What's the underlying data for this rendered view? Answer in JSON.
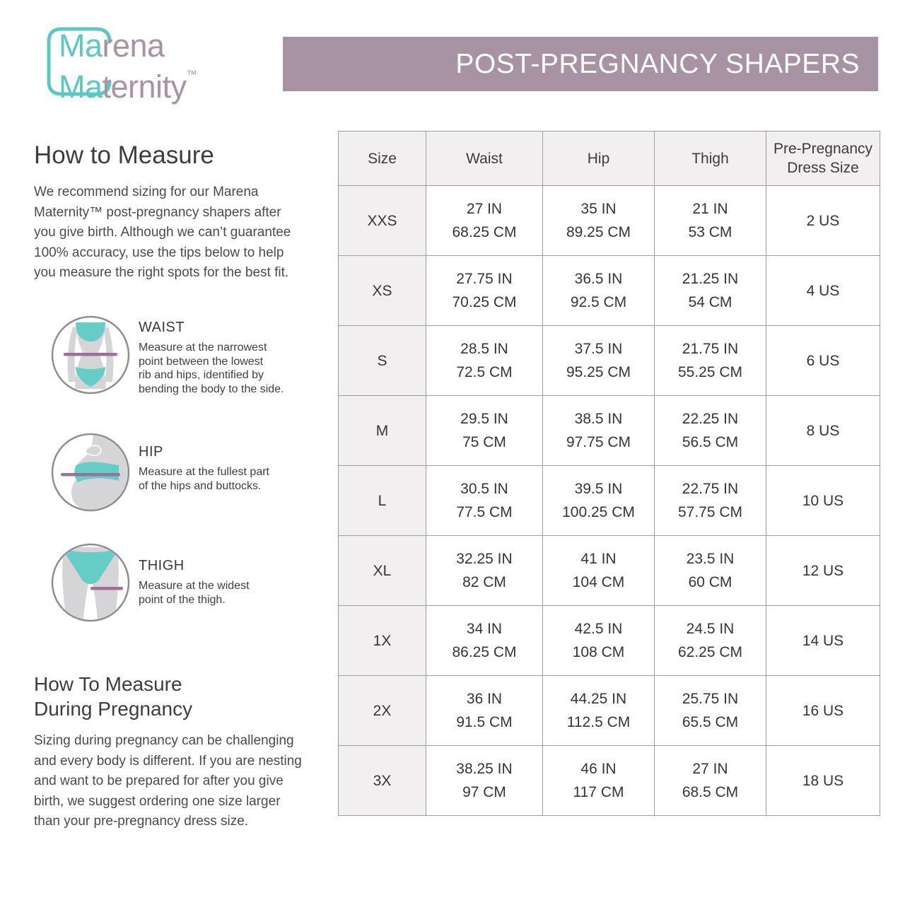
{
  "logo": {
    "line1_accent": "Ma",
    "line1_rest": "rena",
    "line2_accent": "Ma",
    "line2_rest": "ternity",
    "trademark": "™"
  },
  "banner": {
    "title": "POST-PREGNANCY SHAPERS"
  },
  "colors": {
    "accent_teal": "#5BC8C1",
    "accent_mauve": "#A893A4",
    "measure_line_purple": "#9F6F99",
    "figure_gray": "#D5D4D6",
    "table_header_bg": "#F2EFF0",
    "table_border": "#9E9E9E"
  },
  "how_to_measure": {
    "title": "How to Measure",
    "body": "We recommend sizing for our Marena\nMaternity™ post-pregnancy shapers after\nyou give birth. Although we can’t guarantee\n100% accuracy, use the tips below to help\nyou measure the right spots for the best fit.",
    "tips": [
      {
        "label": "WAIST",
        "icon": "waist-figure-icon",
        "description": "Measure at the narrowest\npoint between the lowest\nrib and hips, identified by\nbending the body to the side."
      },
      {
        "label": "HIP",
        "icon": "hip-figure-icon",
        "description": "Measure at the fullest part\nof the hips and buttocks."
      },
      {
        "label": "THIGH",
        "icon": "thigh-figure-icon",
        "description": "Measure at the widest\npoint of the thigh."
      }
    ]
  },
  "during_pregnancy": {
    "title": "How To Measure\nDuring Pregnancy",
    "body": "Sizing during pregnancy can be challenging\nand every body is different. If you are nesting\nand want to be prepared for after you give\nbirth, we suggest ordering one size larger\nthan your pre-pregnancy dress size."
  },
  "size_chart": {
    "columns": [
      "Size",
      "Waist",
      "Hip",
      "Thigh",
      "Pre-Pregnancy Dress Size"
    ],
    "rows": [
      {
        "size": "XXS",
        "waist_in": "27 IN",
        "waist_cm": "68.25 CM",
        "hip_in": "35 IN",
        "hip_cm": "89.25 CM",
        "thigh_in": "21 IN",
        "thigh_cm": "53 CM",
        "dress": "2 US"
      },
      {
        "size": "XS",
        "waist_in": "27.75 IN",
        "waist_cm": "70.25 CM",
        "hip_in": "36.5 IN",
        "hip_cm": "92.5 CM",
        "thigh_in": "21.25 IN",
        "thigh_cm": "54 CM",
        "dress": "4 US"
      },
      {
        "size": "S",
        "waist_in": "28.5 IN",
        "waist_cm": "72.5 CM",
        "hip_in": "37.5 IN",
        "hip_cm": "95.25 CM",
        "thigh_in": "21.75 IN",
        "thigh_cm": "55.25 CM",
        "dress": "6 US"
      },
      {
        "size": "M",
        "waist_in": "29.5 IN",
        "waist_cm": "75 CM",
        "hip_in": "38.5 IN",
        "hip_cm": "97.75 CM",
        "thigh_in": "22.25 IN",
        "thigh_cm": "56.5 CM",
        "dress": "8 US"
      },
      {
        "size": "L",
        "waist_in": "30.5 IN",
        "waist_cm": "77.5 CM",
        "hip_in": "39.5 IN",
        "hip_cm": "100.25 CM",
        "thigh_in": "22.75 IN",
        "thigh_cm": "57.75 CM",
        "dress": "10 US"
      },
      {
        "size": "XL",
        "waist_in": "32.25 IN",
        "waist_cm": "82 CM",
        "hip_in": "41 IN",
        "hip_cm": "104 CM",
        "thigh_in": "23.5 IN",
        "thigh_cm": "60 CM",
        "dress": "12 US"
      },
      {
        "size": "1X",
        "waist_in": "34 IN",
        "waist_cm": "86.25 CM",
        "hip_in": "42.5 IN",
        "hip_cm": "108 CM",
        "thigh_in": "24.5 IN",
        "thigh_cm": "62.25 CM",
        "dress": "14 US"
      },
      {
        "size": "2X",
        "waist_in": "36 IN",
        "waist_cm": "91.5 CM",
        "hip_in": "44.25 IN",
        "hip_cm": "112.5 CM",
        "thigh_in": "25.75 IN",
        "thigh_cm": "65.5 CM",
        "dress": "16 US"
      },
      {
        "size": "3X",
        "waist_in": "38.25 IN",
        "waist_cm": "97 CM",
        "hip_in": "46 IN",
        "hip_cm": "117 CM",
        "thigh_in": "27 IN",
        "thigh_cm": "68.5 CM",
        "dress": "18 US"
      }
    ]
  }
}
